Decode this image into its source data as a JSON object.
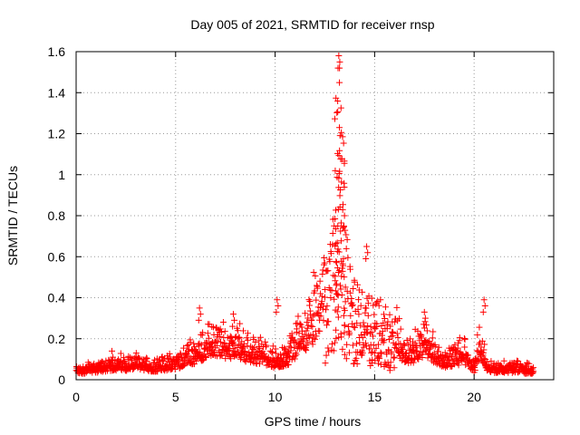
{
  "chart_data": {
    "type": "scatter",
    "title": "Day 005 of 2021, SRMTID for receiver rnsp",
    "xlabel": "GPS time / hours",
    "ylabel": "SRMTID / TECUs",
    "xlim": [
      0,
      24
    ],
    "ylim": [
      0,
      1.6
    ],
    "x_ticks": [
      0,
      5,
      10,
      15,
      20
    ],
    "y_ticks": [
      0,
      0.2,
      0.4,
      0.6,
      0.8,
      1,
      1.2,
      1.4,
      1.6
    ],
    "y_tick_labels": [
      "0",
      "0.2",
      "0.4",
      "0.6",
      "0.8",
      "1",
      "1.2",
      "1.4",
      "1.6"
    ],
    "grid": true,
    "marker": "+",
    "color": "#ff0000",
    "series": [
      {
        "name": "SRMTID",
        "envelope_x": [
          0,
          1,
          2,
          3,
          4,
          5,
          5.5,
          6,
          6.5,
          7,
          7.5,
          8,
          8.5,
          9,
          9.5,
          10,
          10.5,
          11,
          11.5,
          12,
          12.5,
          13,
          13.2,
          13.5,
          14,
          14.5,
          15,
          15.5,
          16,
          16.5,
          17,
          17.5,
          18,
          18.5,
          19,
          19.5,
          20,
          20.3,
          20.6,
          21,
          22,
          23
        ],
        "envelope_y": [
          0.05,
          0.06,
          0.08,
          0.08,
          0.07,
          0.09,
          0.12,
          0.14,
          0.18,
          0.2,
          0.17,
          0.2,
          0.16,
          0.14,
          0.13,
          0.1,
          0.11,
          0.18,
          0.25,
          0.33,
          0.45,
          0.8,
          1.15,
          0.7,
          0.45,
          0.38,
          0.4,
          0.35,
          0.25,
          0.12,
          0.15,
          0.2,
          0.14,
          0.1,
          0.12,
          0.14,
          0.06,
          0.2,
          0.08,
          0.06,
          0.06,
          0.05
        ]
      }
    ],
    "peaks": [
      {
        "x": 13.2,
        "y": 1.58
      },
      {
        "x": 1.8,
        "y": 0.14
      },
      {
        "x": 6.2,
        "y": 0.35
      },
      {
        "x": 7.9,
        "y": 0.32
      },
      {
        "x": 10.1,
        "y": 0.39
      },
      {
        "x": 14.6,
        "y": 0.65
      },
      {
        "x": 17.5,
        "y": 0.33
      },
      {
        "x": 20.5,
        "y": 0.39
      }
    ]
  }
}
